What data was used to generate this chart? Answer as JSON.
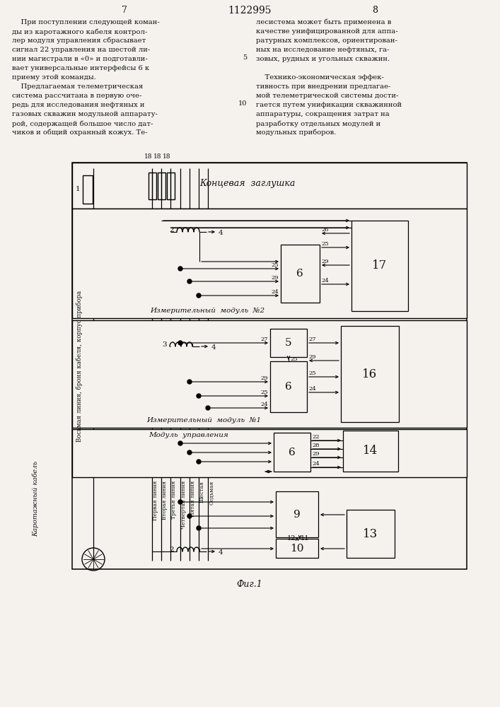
{
  "bg": "#f5f2ed",
  "tc": "#111111",
  "title": "1122995",
  "pl": "7",
  "pr": "8",
  "fig": "Фиг.1",
  "left_text": [
    "    При поступлении следующей коман-",
    "ды из каротажного кабеля контрол-",
    "лер модуля управления сбрасывает",
    "сигнал 22 управления на шестой ли-",
    "нии магистрали в «0» и подготавли-",
    "вает универсальные интерфейсы 6 к",
    "приему этой команды.",
    "    Предлагаемая телеметрическая",
    "система рассчитана в первую оче-",
    "редь для исследования нефтяных и",
    "газовых скважин модульной аппарату-",
    "рой, содержащей большое число дат-",
    "чиков и общий охранный кожух. Те-"
  ],
  "right_text": [
    "лесистема может быть применена в",
    "качестве унифицированной для аппа-",
    "ратурных комплексов, ориентирован-",
    "ных на исследование нефтяных, га-",
    "зовых, рудных и угольных скважин.",
    "",
    "    Технико-экономическая эффек-",
    "тивность при внедрении предлагае-",
    "мой телеметрической системы дости-",
    "гается путем унификации скважинной",
    "аппаратуры, сокращения затрат на",
    "разработку отдельных модулей и",
    "модульных приборов."
  ]
}
